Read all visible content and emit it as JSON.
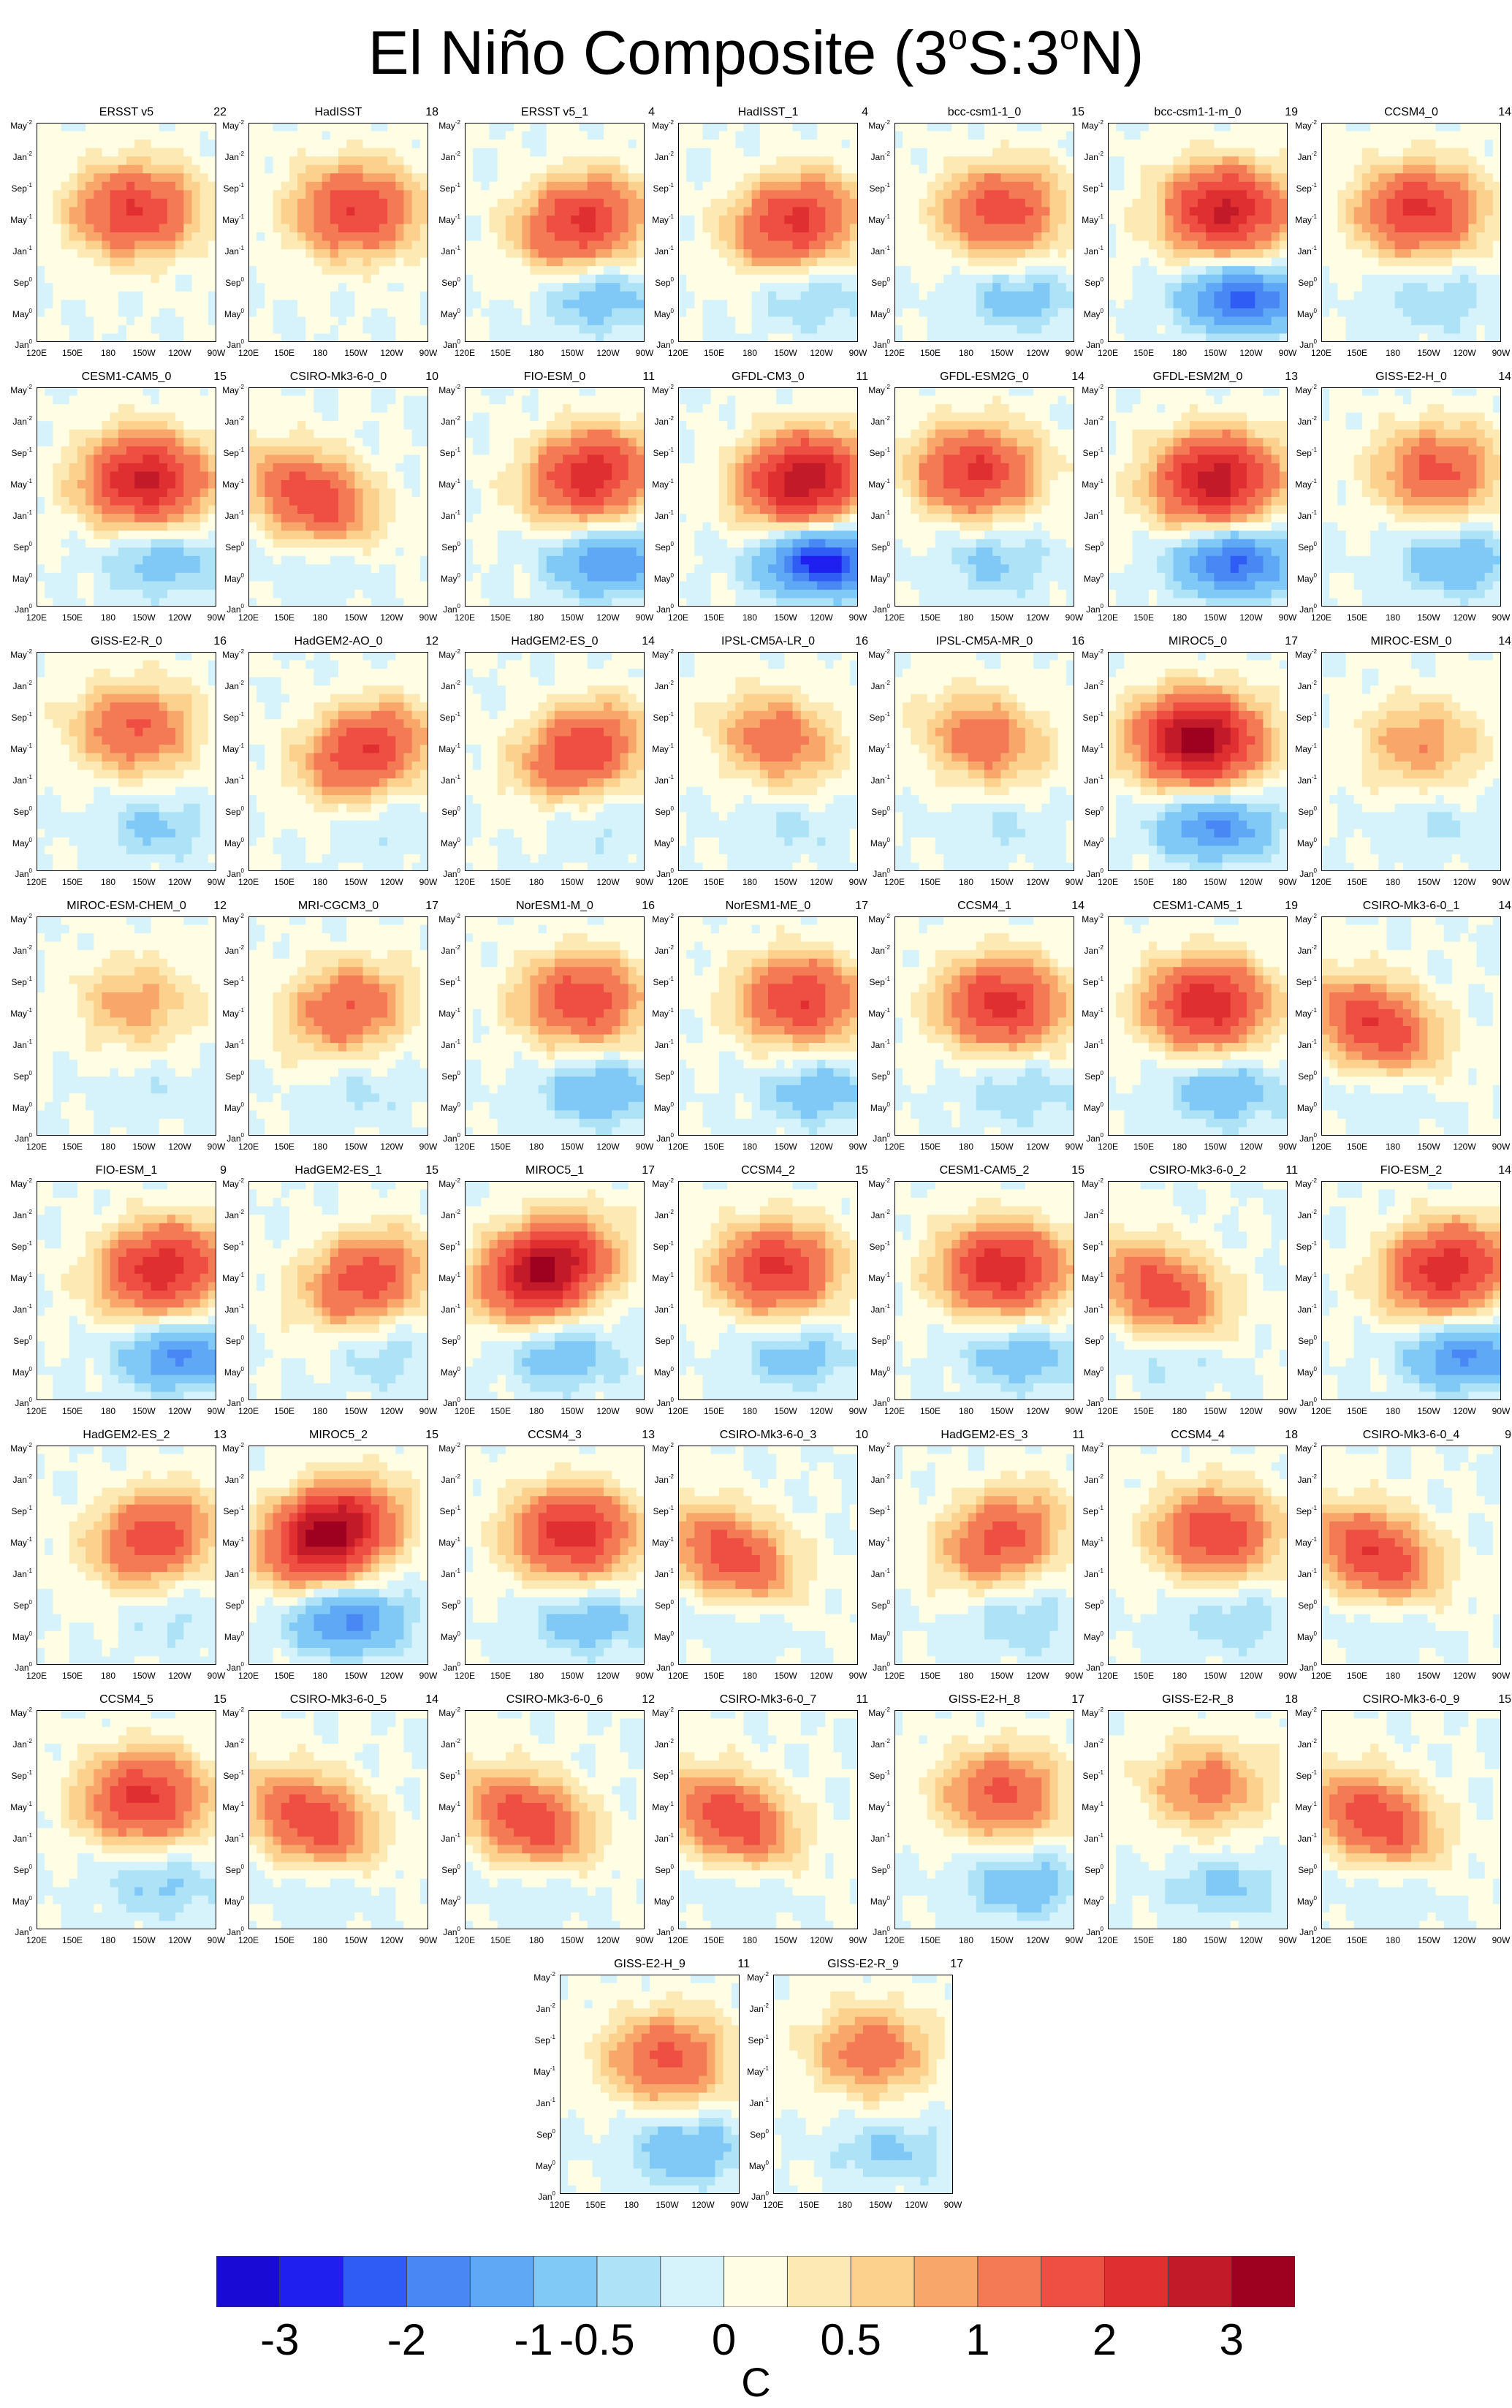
{
  "title": {
    "text": "El Niño Composite (3",
    "sup1": "o",
    "mid": "S:3",
    "sup2": "o",
    "end": "N)"
  },
  "chart_data": {
    "type": "heatmap",
    "title": "El Niño Composite (3°S:3°N)",
    "x_tick_labels": [
      "120E",
      "150E",
      "180",
      "150W",
      "120W",
      "90W"
    ],
    "y_tick_labels": [
      {
        "month": "May",
        "year": "-2"
      },
      {
        "month": "Jan",
        "year": "-2"
      },
      {
        "month": "Sep",
        "year": "-1"
      },
      {
        "month": "May",
        "year": "-1"
      },
      {
        "month": "Jan",
        "year": "-1"
      },
      {
        "month": "Sep",
        "year": "0"
      },
      {
        "month": "May",
        "year": "0"
      },
      {
        "month": "Jan",
        "year": "0"
      }
    ],
    "panels": [
      {
        "name": "ERSST v5",
        "count": "22",
        "amp": 2.0,
        "cold": 0.0,
        "slope": 0.0,
        "center_lon": 0.55,
        "center_time": 0.6
      },
      {
        "name": "HadISST",
        "count": "18",
        "amp": 2.0,
        "cold": 0.0,
        "slope": 0.0,
        "center_lon": 0.6,
        "center_time": 0.6
      },
      {
        "name": "ERSST v5_1",
        "count": "4",
        "amp": 2.1,
        "cold": 0.8,
        "slope": 0.4,
        "center_lon": 0.65,
        "center_time": 0.55
      },
      {
        "name": "HadISST_1",
        "count": "4",
        "amp": 2.1,
        "cold": 0.5,
        "slope": 0.4,
        "center_lon": 0.65,
        "center_time": 0.55
      },
      {
        "name": "bcc-csm1-1_0",
        "count": "15",
        "amp": 1.8,
        "cold": 0.7,
        "slope": 0.1,
        "center_lon": 0.6,
        "center_time": 0.6
      },
      {
        "name": "bcc-csm1-1-m_0",
        "count": "19",
        "amp": 2.6,
        "cold": 2.2,
        "slope": 0.0,
        "center_lon": 0.65,
        "center_time": 0.6
      },
      {
        "name": "CCSM4_0",
        "count": "14",
        "amp": 2.1,
        "cold": 0.5,
        "slope": 0.0,
        "center_lon": 0.55,
        "center_time": 0.6
      },
      {
        "name": "CESM1-CAM5_0",
        "count": "15",
        "amp": 2.6,
        "cold": 0.8,
        "slope": 0.0,
        "center_lon": 0.6,
        "center_time": 0.58
      },
      {
        "name": "CSIRO-Mk3-6-0_0",
        "count": "10",
        "amp": 1.9,
        "cold": 0.3,
        "slope": -0.8,
        "center_lon": 0.35,
        "center_time": 0.5
      },
      {
        "name": "FIO-ESM_0",
        "count": "11",
        "amp": 2.3,
        "cold": 1.5,
        "slope": 0.3,
        "center_lon": 0.7,
        "center_time": 0.6
      },
      {
        "name": "GFDL-CM3_0",
        "count": "11",
        "amp": 2.9,
        "cold": 2.8,
        "slope": 0.2,
        "center_lon": 0.7,
        "center_time": 0.58
      },
      {
        "name": "GFDL-ESM2G_0",
        "count": "14",
        "amp": 2.1,
        "cold": 0.6,
        "slope": 0.0,
        "center_lon": 0.45,
        "center_time": 0.62
      },
      {
        "name": "GFDL-ESM2M_0",
        "count": "13",
        "amp": 2.8,
        "cold": 2.1,
        "slope": 0.1,
        "center_lon": 0.6,
        "center_time": 0.58
      },
      {
        "name": "GISS-E2-H_0",
        "count": "14",
        "amp": 1.6,
        "cold": 1.0,
        "slope": 0.0,
        "center_lon": 0.65,
        "center_time": 0.62
      },
      {
        "name": "GISS-E2-R_0",
        "count": "16",
        "amp": 1.5,
        "cold": 0.6,
        "slope": 0.0,
        "center_lon": 0.55,
        "center_time": 0.65
      },
      {
        "name": "HadGEM2-AO_0",
        "count": "12",
        "amp": 2.0,
        "cold": 0.3,
        "slope": 0.6,
        "center_lon": 0.65,
        "center_time": 0.55
      },
      {
        "name": "HadGEM2-ES_0",
        "count": "14",
        "amp": 1.9,
        "cold": 0.3,
        "slope": 0.6,
        "center_lon": 0.65,
        "center_time": 0.55
      },
      {
        "name": "IPSL-CM5A-LR_0",
        "count": "16",
        "amp": 1.3,
        "cold": 0.3,
        "slope": -0.4,
        "center_lon": 0.55,
        "center_time": 0.6
      },
      {
        "name": "IPSL-CM5A-MR_0",
        "count": "16",
        "amp": 1.3,
        "cold": 0.3,
        "slope": -0.4,
        "center_lon": 0.5,
        "center_time": 0.6
      },
      {
        "name": "MIROC5_0",
        "count": "17",
        "amp": 3.3,
        "cold": 1.6,
        "slope": 0.0,
        "center_lon": 0.5,
        "center_time": 0.6
      },
      {
        "name": "MIROC-ESM_0",
        "count": "14",
        "amp": 1.0,
        "cold": 0.3,
        "slope": 0.0,
        "center_lon": 0.55,
        "center_time": 0.58
      },
      {
        "name": "MIROC-ESM-CHEM_0",
        "count": "12",
        "amp": 0.9,
        "cold": 0.2,
        "slope": 0.0,
        "center_lon": 0.55,
        "center_time": 0.6
      },
      {
        "name": "MRI-CGCM3_0",
        "count": "17",
        "amp": 1.5,
        "cold": 0.3,
        "slope": 0.4,
        "center_lon": 0.55,
        "center_time": 0.58
      },
      {
        "name": "NorESM1-M_0",
        "count": "16",
        "amp": 1.9,
        "cold": 1.0,
        "slope": 0.0,
        "center_lon": 0.65,
        "center_time": 0.62
      },
      {
        "name": "NorESM1-ME_0",
        "count": "17",
        "amp": 2.0,
        "cold": 0.8,
        "slope": 0.0,
        "center_lon": 0.68,
        "center_time": 0.62
      },
      {
        "name": "CCSM4_1",
        "count": "14",
        "amp": 2.2,
        "cold": 0.5,
        "slope": 0.0,
        "center_lon": 0.6,
        "center_time": 0.6
      },
      {
        "name": "CESM1-CAM5_1",
        "count": "19",
        "amp": 2.4,
        "cold": 0.9,
        "slope": 0.0,
        "center_lon": 0.55,
        "center_time": 0.6
      },
      {
        "name": "CSIRO-Mk3-6-0_1",
        "count": "14",
        "amp": 2.0,
        "cold": 0.3,
        "slope": -0.8,
        "center_lon": 0.3,
        "center_time": 0.5
      },
      {
        "name": "FIO-ESM_1",
        "count": "9",
        "amp": 2.4,
        "cold": 1.6,
        "slope": 0.3,
        "center_lon": 0.7,
        "center_time": 0.6
      },
      {
        "name": "HadGEM2-ES_1",
        "count": "15",
        "amp": 1.8,
        "cold": 0.4,
        "slope": 0.6,
        "center_lon": 0.65,
        "center_time": 0.55
      },
      {
        "name": "MIROC5_1",
        "count": "17",
        "amp": 3.2,
        "cold": 0.8,
        "slope": 0.6,
        "center_lon": 0.45,
        "center_time": 0.6
      },
      {
        "name": "CCSM4_2",
        "count": "15",
        "amp": 2.1,
        "cold": 0.7,
        "slope": 0.0,
        "center_lon": 0.55,
        "center_time": 0.6
      },
      {
        "name": "CESM1-CAM5_2",
        "count": "15",
        "amp": 2.4,
        "cold": 0.8,
        "slope": 0.0,
        "center_lon": 0.6,
        "center_time": 0.6
      },
      {
        "name": "CSIRO-Mk3-6-0_2",
        "count": "11",
        "amp": 1.8,
        "cold": 0.4,
        "slope": -0.8,
        "center_lon": 0.3,
        "center_time": 0.5
      },
      {
        "name": "FIO-ESM_2",
        "count": "14",
        "amp": 2.4,
        "cold": 1.6,
        "slope": 0.3,
        "center_lon": 0.7,
        "center_time": 0.6
      },
      {
        "name": "HadGEM2-ES_2",
        "count": "13",
        "amp": 1.8,
        "cold": 0.3,
        "slope": 0.5,
        "center_lon": 0.65,
        "center_time": 0.58
      },
      {
        "name": "MIROC5_2",
        "count": "15",
        "amp": 3.4,
        "cold": 1.6,
        "slope": 0.6,
        "center_lon": 0.45,
        "center_time": 0.6
      },
      {
        "name": "CCSM4_3",
        "count": "13",
        "amp": 2.3,
        "cold": 0.8,
        "slope": 0.0,
        "center_lon": 0.6,
        "center_time": 0.6
      },
      {
        "name": "CSIRO-Mk3-6-0_3",
        "count": "10",
        "amp": 1.8,
        "cold": 0.3,
        "slope": -0.9,
        "center_lon": 0.3,
        "center_time": 0.5
      },
      {
        "name": "HadGEM2-ES_3",
        "count": "11",
        "amp": 1.7,
        "cold": 0.5,
        "slope": 0.6,
        "center_lon": 0.6,
        "center_time": 0.58
      },
      {
        "name": "CCSM4_4",
        "count": "18",
        "amp": 1.9,
        "cold": 0.5,
        "slope": 0.0,
        "center_lon": 0.6,
        "center_time": 0.6
      },
      {
        "name": "CSIRO-Mk3-6-0_4",
        "count": "9",
        "amp": 2.0,
        "cold": 0.3,
        "slope": -0.8,
        "center_lon": 0.3,
        "center_time": 0.5
      },
      {
        "name": "CCSM4_5",
        "count": "15",
        "amp": 2.1,
        "cold": 0.6,
        "slope": 0.0,
        "center_lon": 0.6,
        "center_time": 0.6
      },
      {
        "name": "CSIRO-Mk3-6-0_5",
        "count": "14",
        "amp": 1.9,
        "cold": 0.3,
        "slope": -0.8,
        "center_lon": 0.35,
        "center_time": 0.5
      },
      {
        "name": "CSIRO-Mk3-6-0_6",
        "count": "12",
        "amp": 1.9,
        "cold": 0.3,
        "slope": -0.8,
        "center_lon": 0.35,
        "center_time": 0.5
      },
      {
        "name": "CSIRO-Mk3-6-0_7",
        "count": "11",
        "amp": 1.9,
        "cold": 0.3,
        "slope": -0.9,
        "center_lon": 0.3,
        "center_time": 0.5
      },
      {
        "name": "GISS-E2-H_8",
        "count": "17",
        "amp": 1.6,
        "cold": 0.9,
        "slope": 0.0,
        "center_lon": 0.6,
        "center_time": 0.62
      },
      {
        "name": "GISS-E2-R_8",
        "count": "18",
        "amp": 1.2,
        "cold": 0.6,
        "slope": 0.0,
        "center_lon": 0.55,
        "center_time": 0.65
      },
      {
        "name": "CSIRO-Mk3-6-0_9",
        "count": "15",
        "amp": 1.9,
        "cold": 0.3,
        "slope": -0.8,
        "center_lon": 0.3,
        "center_time": 0.5
      },
      {
        "name": "GISS-E2-H_9",
        "count": "11",
        "amp": 1.6,
        "cold": 1.0,
        "slope": 0.0,
        "center_lon": 0.6,
        "center_time": 0.62
      },
      {
        "name": "GISS-E2-R_9",
        "count": "17",
        "amp": 1.3,
        "cold": 0.6,
        "slope": 0.0,
        "center_lon": 0.55,
        "center_time": 0.65
      }
    ],
    "colorbar": {
      "levels": [
        -3.5,
        -3,
        -2.5,
        -2,
        -1.5,
        -1,
        -0.5,
        -0.25,
        0,
        0.25,
        0.5,
        0.75,
        1,
        1.5,
        2,
        2.5,
        3,
        3.5
      ],
      "colors": [
        "#1a0ad6",
        "#1f1ff0",
        "#2f5cf5",
        "#4887f4",
        "#5fa8f6",
        "#80c9f7",
        "#aee3f7",
        "#d6f3fb",
        "#fffde3",
        "#fde9b4",
        "#fcd18d",
        "#f9a66b",
        "#f47a55",
        "#ef4f42",
        "#e02f30",
        "#c21a28",
        "#9e0020"
      ],
      "tick_labels": [
        "-3",
        "-2",
        "-1",
        "-0.5",
        "0",
        "0.5",
        "1",
        "2",
        "3"
      ],
      "unit": "C"
    }
  }
}
